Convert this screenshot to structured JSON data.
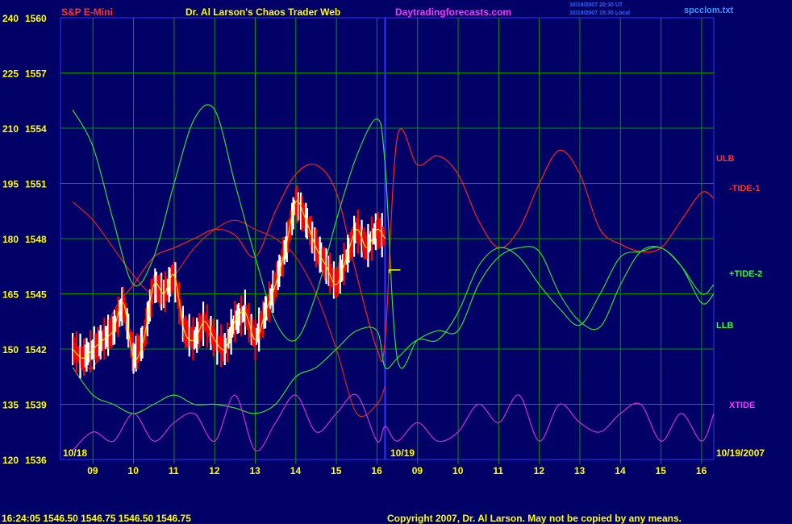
{
  "header": {
    "instrument": "S&P E-Mini",
    "title": "Dr. Al Larson's Chaos Trader Web",
    "site": "Daytradingforecasts.com",
    "stamp_line1": "10/19/2007 20:30 UT",
    "stamp_line2": "10/19/2007 15:30 Local",
    "file": "spcclom.txt"
  },
  "footer": {
    "quote": "16:24:05  1546.50  1546.75  1546.50  1546.75",
    "copyright": "Copyright 2007, Dr. Al Larson. May not be copied by any means."
  },
  "colors": {
    "background": "#000066",
    "grid": "#009900",
    "price_up": "#ffffff",
    "price_down": "#ff0000",
    "ulb": "#ff2222",
    "tide1": "#dd2222",
    "tide2": "#33dd33",
    "llb": "#33dd33",
    "xtide": "#cc33cc",
    "divider": "#3333ff",
    "text_yellow": "#ffff00",
    "text_red": "#ff3333",
    "text_magenta": "#ff33ff"
  },
  "chart_data": {
    "type": "line",
    "y_left_labels": [
      "240",
      "225",
      "210",
      "195",
      "180",
      "165",
      "150",
      "135",
      "120"
    ],
    "y_right_labels": [
      "1560",
      "1557",
      "1554",
      "1551",
      "1548",
      "1545",
      "1542",
      "1539",
      "1536"
    ],
    "ylim_price": [
      1536,
      1560
    ],
    "ylim_index": [
      120,
      240
    ],
    "x_ticks_day1": [
      "09",
      "10",
      "11",
      "12",
      "13",
      "14",
      "15",
      "16"
    ],
    "x_ticks_day2": [
      "09",
      "10",
      "11",
      "12",
      "13",
      "14",
      "15",
      "16"
    ],
    "date_labels": [
      "10/18",
      "10/19",
      "10/19/2007"
    ],
    "grid": true,
    "series": [
      {
        "name": "ULB",
        "points": [
          [
            8.5,
            1542
          ],
          [
            9,
            1541
          ],
          [
            9.5,
            1544
          ],
          [
            10,
            1545.5
          ],
          [
            10.5,
            1547
          ],
          [
            11,
            1547.5
          ],
          [
            11.5,
            1548
          ],
          [
            12,
            1548.5
          ],
          [
            12.5,
            1548.2
          ],
          [
            13,
            1547
          ],
          [
            13.5,
            1549.5
          ],
          [
            14,
            1551.5
          ],
          [
            14.5,
            1552
          ],
          [
            15,
            1550.5
          ],
          [
            15.5,
            1546
          ],
          [
            16,
            1542
          ],
          [
            16.2,
            1542.5
          ],
          [
            16.5,
            1553.5
          ],
          [
            17,
            1552
          ],
          [
            17.5,
            1552.5
          ],
          [
            18,
            1551.5
          ],
          [
            18.5,
            1549
          ],
          [
            19,
            1547.5
          ],
          [
            19.5,
            1548.5
          ],
          [
            20,
            1551
          ],
          [
            20.5,
            1552.8
          ],
          [
            21,
            1551.5
          ],
          [
            21.5,
            1548.5
          ],
          [
            22,
            1547.7
          ],
          [
            22.5,
            1547.3
          ],
          [
            23,
            1547.5
          ],
          [
            23.5,
            1549
          ],
          [
            24,
            1550.5
          ],
          [
            24.3,
            1550.2
          ]
        ]
      },
      {
        "name": "-TIDE-1",
        "points": [
          [
            8.5,
            1550
          ],
          [
            9,
            1549
          ],
          [
            9.5,
            1547.5
          ],
          [
            10,
            1546
          ],
          [
            10.5,
            1545
          ],
          [
            11,
            1546
          ],
          [
            11.5,
            1547.5
          ],
          [
            12,
            1548.5
          ],
          [
            12.5,
            1549
          ],
          [
            13,
            1548.5
          ],
          [
            13.5,
            1548
          ],
          [
            14,
            1547
          ],
          [
            14.5,
            1545
          ],
          [
            15,
            1542
          ],
          [
            15.5,
            1538.5
          ],
          [
            16,
            1539
          ],
          [
            16.2,
            1540
          ]
        ]
      },
      {
        "name": "+TIDE-2",
        "points": [
          [
            8.5,
            1555
          ],
          [
            9,
            1553
          ],
          [
            9.5,
            1549
          ],
          [
            10,
            1545.5
          ],
          [
            10.5,
            1547
          ],
          [
            11,
            1551
          ],
          [
            11.5,
            1554.5
          ],
          [
            12,
            1555
          ],
          [
            12.5,
            1551
          ],
          [
            13,
            1547
          ],
          [
            13.5,
            1543.5
          ],
          [
            14,
            1542.5
          ],
          [
            14.5,
            1545
          ],
          [
            15,
            1549
          ],
          [
            15.5,
            1552.5
          ],
          [
            16,
            1554.5
          ],
          [
            16.2,
            1552
          ],
          [
            16.5,
            1541.5
          ],
          [
            17,
            1542.5
          ],
          [
            17.5,
            1543
          ],
          [
            18,
            1543
          ],
          [
            18.5,
            1545.5
          ],
          [
            19,
            1547
          ],
          [
            19.5,
            1547.5
          ],
          [
            20,
            1547.3
          ],
          [
            20.5,
            1545
          ],
          [
            21,
            1543.5
          ],
          [
            21.5,
            1543.2
          ],
          [
            22,
            1545.5
          ],
          [
            22.5,
            1547.3
          ],
          [
            23,
            1547.5
          ],
          [
            23.5,
            1546.5
          ],
          [
            24,
            1544.5
          ],
          [
            24.3,
            1545
          ]
        ]
      },
      {
        "name": "LLB",
        "points": [
          [
            8.5,
            1541
          ],
          [
            9,
            1539.5
          ],
          [
            9.5,
            1539
          ],
          [
            10,
            1538.5
          ],
          [
            10.5,
            1539
          ],
          [
            11,
            1539.5
          ],
          [
            11.5,
            1539
          ],
          [
            12,
            1539
          ],
          [
            12.5,
            1538.8
          ],
          [
            13,
            1538.5
          ],
          [
            13.5,
            1539
          ],
          [
            14,
            1540.5
          ],
          [
            14.5,
            1541
          ],
          [
            15,
            1542
          ],
          [
            15.5,
            1543
          ],
          [
            16,
            1543
          ],
          [
            16.2,
            1541
          ],
          [
            16.5,
            1541.5
          ],
          [
            17,
            1542.5
          ],
          [
            17.5,
            1542.5
          ],
          [
            18,
            1544
          ],
          [
            18.5,
            1546.5
          ],
          [
            19,
            1547.5
          ],
          [
            19.5,
            1547
          ],
          [
            20,
            1545.5
          ],
          [
            20.5,
            1544.2
          ],
          [
            21,
            1543.3
          ],
          [
            21.5,
            1545
          ],
          [
            22,
            1547
          ],
          [
            22.5,
            1547.3
          ],
          [
            23,
            1547.5
          ],
          [
            23.5,
            1546.5
          ],
          [
            24,
            1545
          ],
          [
            24.3,
            1545.5
          ]
        ]
      },
      {
        "name": "XTIDE",
        "points": [
          [
            8.5,
            1536.5
          ],
          [
            9,
            1537.5
          ],
          [
            9.5,
            1537
          ],
          [
            10,
            1538.5
          ],
          [
            10.5,
            1537
          ],
          [
            11,
            1538
          ],
          [
            11.5,
            1538.5
          ],
          [
            12,
            1537
          ],
          [
            12.5,
            1539.5
          ],
          [
            13,
            1536.5
          ],
          [
            13.5,
            1538
          ],
          [
            14,
            1539.5
          ],
          [
            14.5,
            1537.5
          ],
          [
            15,
            1538.5
          ],
          [
            15.5,
            1539.5
          ],
          [
            16,
            1537
          ],
          [
            16.2,
            1537.8
          ],
          [
            16.5,
            1537
          ],
          [
            17,
            1538
          ],
          [
            17.5,
            1537
          ],
          [
            18,
            1537.5
          ],
          [
            18.5,
            1539
          ],
          [
            19,
            1538
          ],
          [
            19.5,
            1539.5
          ],
          [
            20,
            1537
          ],
          [
            20.5,
            1539
          ],
          [
            21,
            1538
          ],
          [
            21.5,
            1537.5
          ],
          [
            22,
            1538.5
          ],
          [
            22.5,
            1539
          ],
          [
            23,
            1537
          ],
          [
            23.5,
            1538.5
          ],
          [
            24,
            1537
          ],
          [
            24.3,
            1538.5
          ]
        ]
      },
      {
        "name": "S&P E-Mini",
        "points": [
          [
            8.5,
            1542
          ],
          [
            8.75,
            1541.5
          ],
          [
            9,
            1542
          ],
          [
            9.25,
            1542.5
          ],
          [
            9.5,
            1543
          ],
          [
            9.75,
            1544.5
          ],
          [
            10,
            1541.5
          ],
          [
            10.25,
            1542.5
          ],
          [
            10.5,
            1545.5
          ],
          [
            10.75,
            1545
          ],
          [
            11,
            1546
          ],
          [
            11.25,
            1543
          ],
          [
            11.5,
            1542.5
          ],
          [
            11.75,
            1543.5
          ],
          [
            12,
            1542.5
          ],
          [
            12.25,
            1542
          ],
          [
            12.5,
            1543.5
          ],
          [
            12.75,
            1544
          ],
          [
            13,
            1542.5
          ],
          [
            13.25,
            1544
          ],
          [
            13.5,
            1545.5
          ],
          [
            13.75,
            1547.5
          ],
          [
            14,
            1550
          ],
          [
            14.25,
            1549
          ],
          [
            14.5,
            1547.5
          ],
          [
            14.75,
            1546.5
          ],
          [
            15,
            1545.5
          ],
          [
            15.25,
            1547
          ],
          [
            15.5,
            1548.5
          ],
          [
            15.75,
            1547.5
          ],
          [
            16,
            1548.5
          ],
          [
            16.2,
            1548
          ]
        ]
      }
    ],
    "legend_labels": [
      "ULB",
      "-TIDE-1",
      "+TIDE-2",
      "LLB",
      "XTIDE"
    ]
  }
}
